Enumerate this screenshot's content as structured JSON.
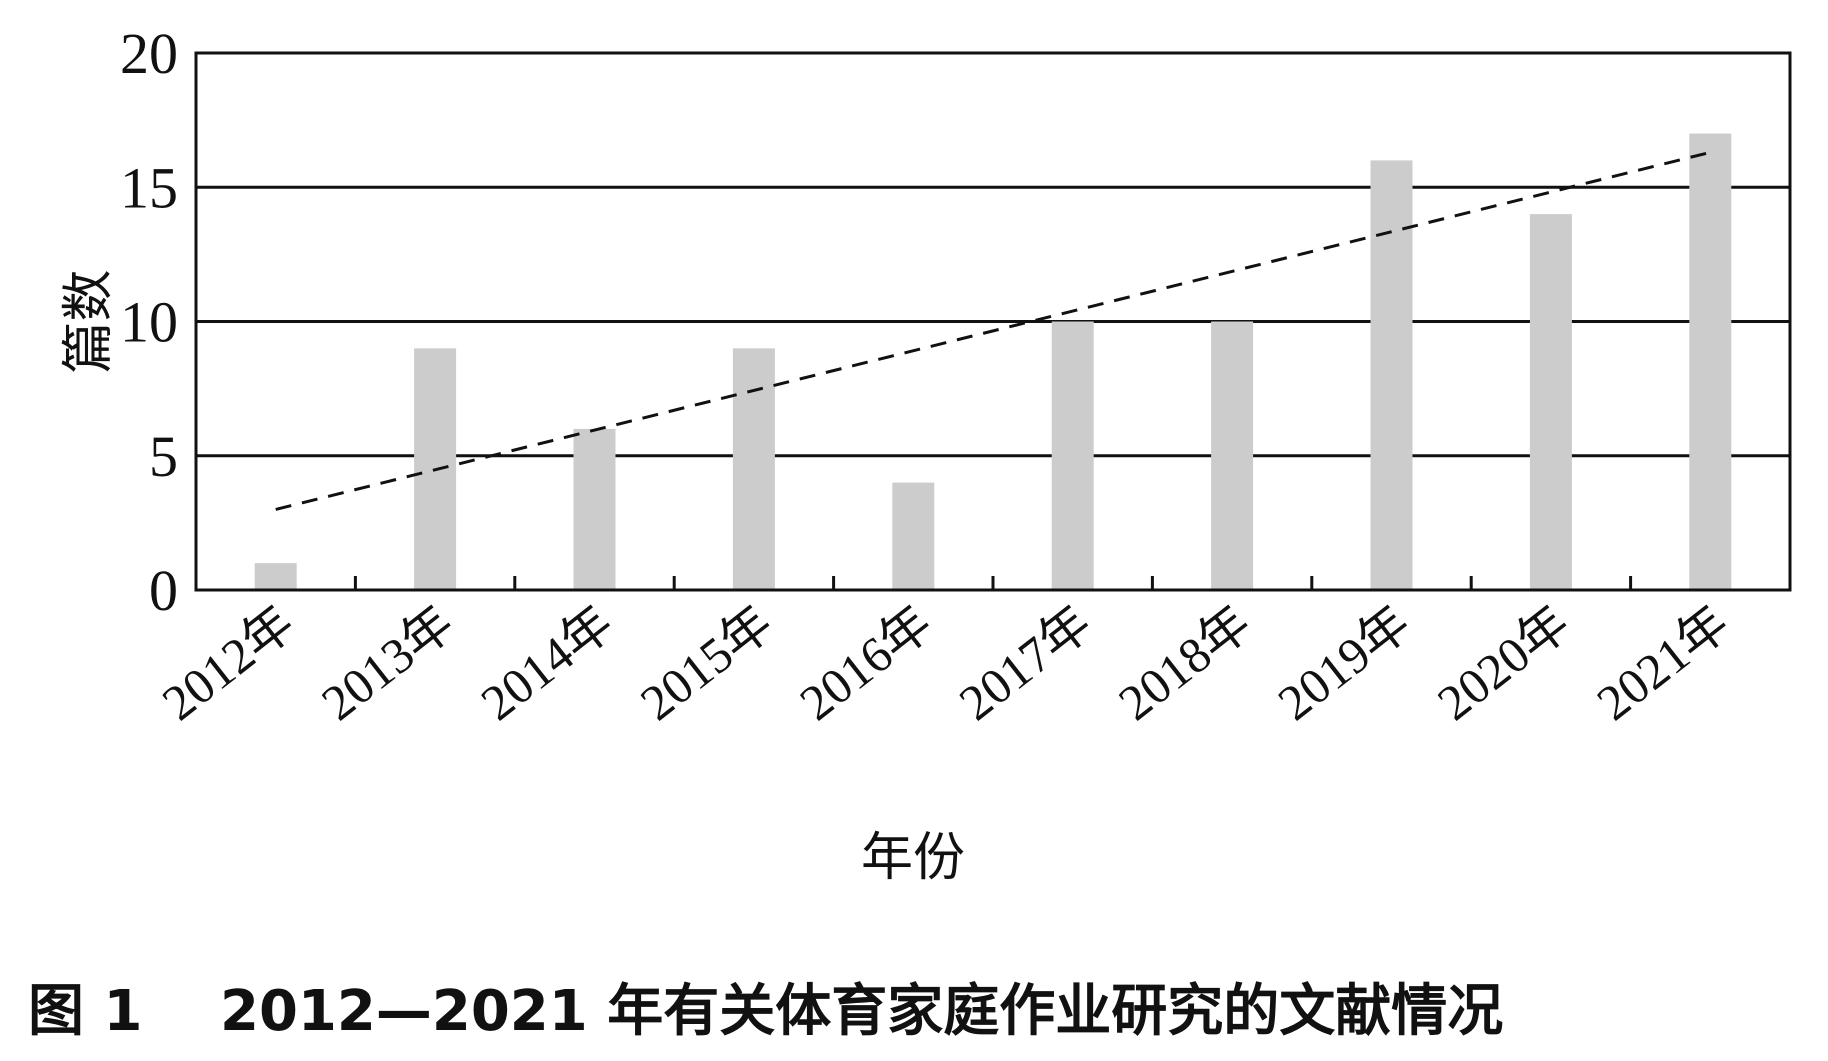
{
  "chart_data": {
    "type": "bar",
    "categories": [
      "2012年",
      "2013年",
      "2014年",
      "2015年",
      "2016年",
      "2017年",
      "2018年",
      "2019年",
      "2020年",
      "2021年"
    ],
    "series": [
      {
        "values": [
          1,
          9,
          6,
          9,
          4,
          10,
          10,
          16,
          14,
          17
        ],
        "color": "#cccccc"
      }
    ],
    "trendline": {
      "style": "dashed",
      "color": "#111111",
      "start": 3.0,
      "end": 16.3
    },
    "xlabel": "年份",
    "ylabel": "篇数",
    "ylim": [
      0,
      20
    ],
    "yticks": [
      0,
      5,
      10,
      15,
      20
    ],
    "grid": "horizontal",
    "legend": "none"
  },
  "caption": {
    "figure_label": "图 1",
    "text": "2012—2021 年有关体育家庭作业研究的文献情况"
  }
}
